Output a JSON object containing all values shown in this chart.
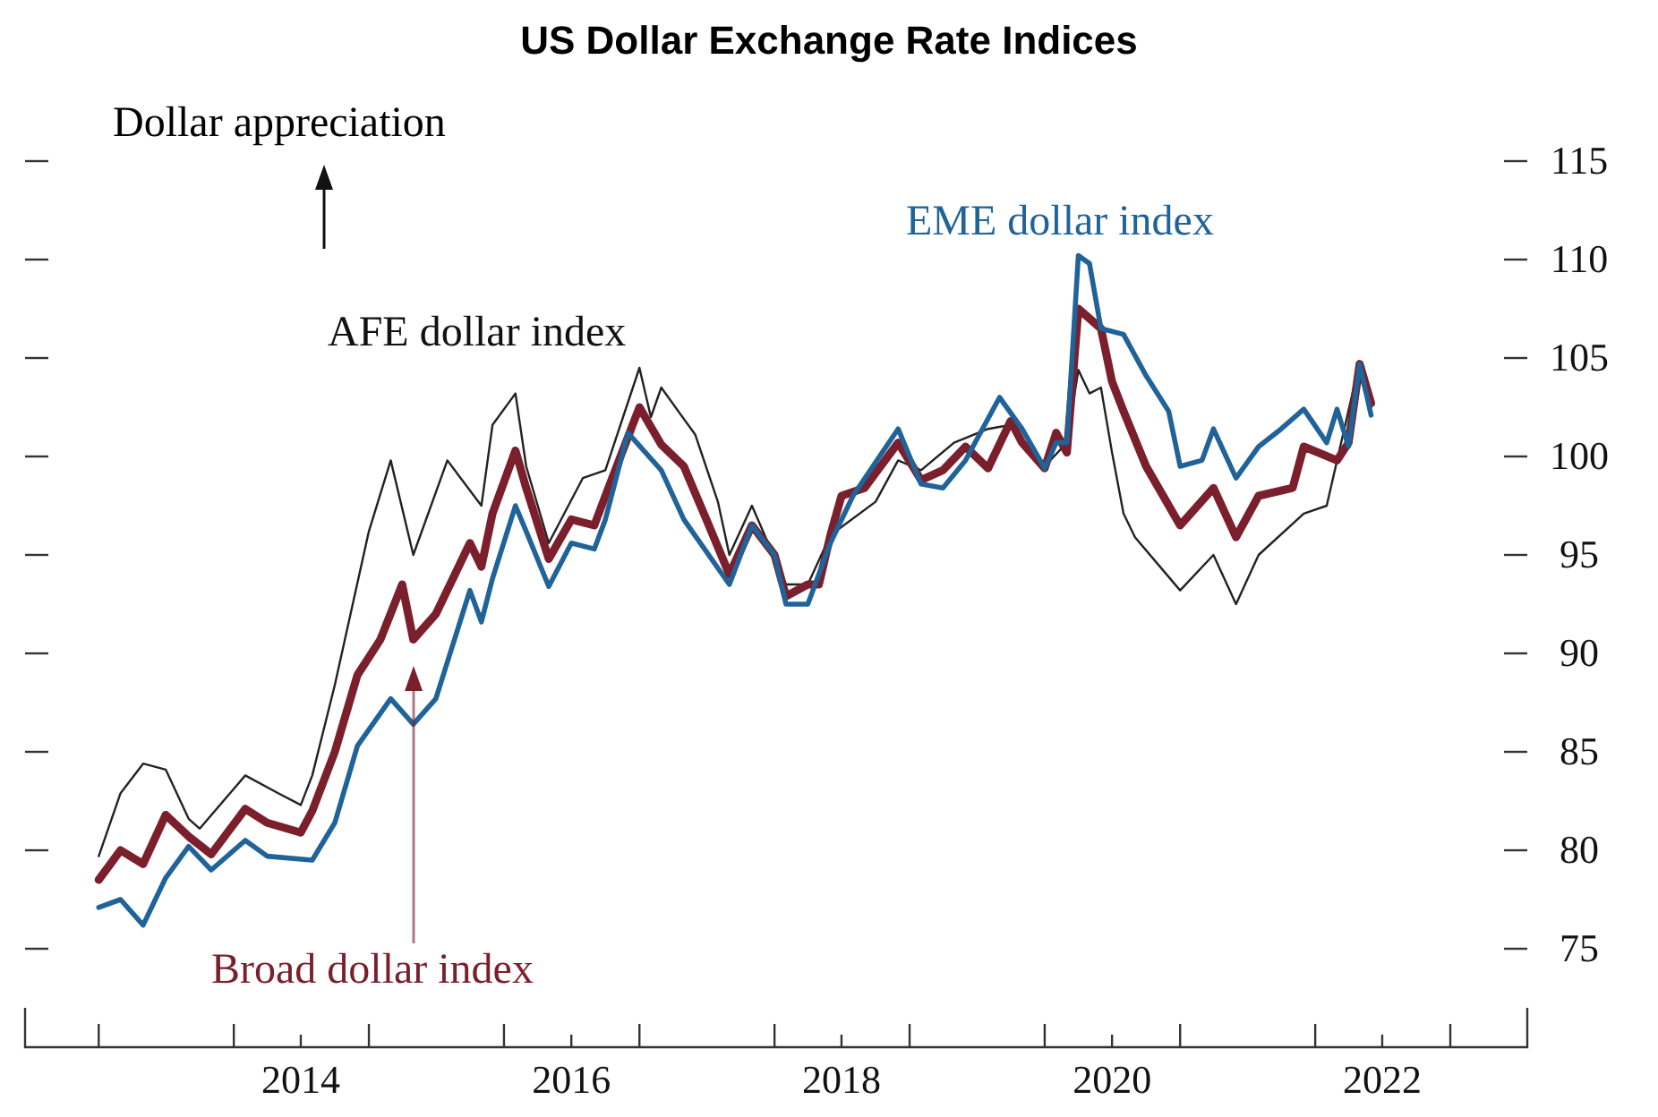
{
  "chart_data": {
    "type": "line",
    "title": "US Dollar Exchange Rate Indices",
    "xlim": [
      "2012-06-16",
      "2023-07-28"
    ],
    "xticks": [
      {
        "value": "2013-01-01",
        "label": null
      },
      {
        "value": "2014-01-01",
        "label": null
      },
      {
        "value": "2014-07-01",
        "label": "2014"
      },
      {
        "value": "2015-01-01",
        "label": null
      },
      {
        "value": "2016-01-01",
        "label": null
      },
      {
        "value": "2016-07-01",
        "label": "2016"
      },
      {
        "value": "2017-01-01",
        "label": null
      },
      {
        "value": "2018-01-01",
        "label": null
      },
      {
        "value": "2018-07-01",
        "label": "2018"
      },
      {
        "value": "2019-01-01",
        "label": null
      },
      {
        "value": "2020-01-01",
        "label": null
      },
      {
        "value": "2020-07-01",
        "label": "2020"
      },
      {
        "value": "2021-01-01",
        "label": null
      },
      {
        "value": "2022-01-01",
        "label": null
      },
      {
        "value": "2022-07-01",
        "label": "2022"
      },
      {
        "value": "2023-01-01",
        "label": null
      }
    ],
    "ylim": [
      70,
      115
    ],
    "yticks": [
      75,
      80,
      85,
      90,
      95,
      100,
      105,
      110,
      115
    ],
    "annotations": [
      "Dollar appreciation"
    ],
    "series": [
      {
        "name": "AFE dollar index",
        "color": "#222222",
        "x": [
          "2013-01",
          "2013-03",
          "2013-05",
          "2013-07",
          "2013-09",
          "2013-10",
          "2014-02",
          "2014-05",
          "2014-07",
          "2014-08",
          "2014-10",
          "2015-01",
          "2015-03",
          "2015-05",
          "2015-08",
          "2015-11",
          "2015-12",
          "2016-02",
          "2016-03",
          "2016-05",
          "2016-08",
          "2016-10",
          "2017-01",
          "2017-02",
          "2017-03",
          "2017-06",
          "2017-08",
          "2017-09",
          "2017-11",
          "2018-02",
          "2018-04",
          "2018-06",
          "2018-10",
          "2018-12",
          "2019-02",
          "2019-05",
          "2019-08",
          "2019-10",
          "2020-01",
          "2020-03",
          "2020-04",
          "2020-05",
          "2020-06",
          "2020-07",
          "2020-08",
          "2020-09",
          "2021-01",
          "2021-04",
          "2021-06",
          "2021-08",
          "2021-12",
          "2022-02",
          "2022-03",
          "2022-05",
          "2022-06"
        ],
        "values": [
          79.7,
          82.9,
          84.4,
          84.1,
          81.6,
          81.1,
          83.8,
          82.9,
          82.3,
          83.8,
          88.4,
          96.2,
          99.8,
          95,
          99.8,
          97.5,
          101.6,
          103.2,
          99.5,
          95.6,
          98.9,
          99.3,
          104.5,
          102,
          103.5,
          101.1,
          97.7,
          95,
          97.5,
          93.5,
          93.5,
          96,
          97.7,
          99.8,
          99.3,
          100.7,
          101.4,
          101.6,
          99.5,
          100.7,
          104.4,
          103.2,
          103.5,
          100.2,
          97.1,
          95.9,
          93.2,
          95,
          92.5,
          95,
          97.1,
          97.5,
          99.8,
          104.8,
          102.5
        ]
      },
      {
        "name": "Broad dollar index",
        "color": "#7a1f2b",
        "x": [
          "2013-01",
          "2013-03",
          "2013-05",
          "2013-07",
          "2013-09",
          "2013-11",
          "2014-02",
          "2014-04",
          "2014-07",
          "2014-08",
          "2014-10",
          "2014-12",
          "2015-02",
          "2015-04",
          "2015-05",
          "2015-07",
          "2015-10",
          "2015-11",
          "2015-12",
          "2016-02",
          "2016-03",
          "2016-05",
          "2016-07",
          "2016-09",
          "2016-10",
          "2017-01",
          "2017-03",
          "2017-05",
          "2017-07",
          "2017-09",
          "2017-11",
          "2018-01",
          "2018-02",
          "2018-04",
          "2018-05",
          "2018-06",
          "2018-07",
          "2018-09",
          "2018-12",
          "2019-02",
          "2019-04",
          "2019-06",
          "2019-08",
          "2019-10",
          "2019-11",
          "2020-01",
          "2020-02",
          "2020-03",
          "2020-04",
          "2020-06",
          "2020-07",
          "2020-08",
          "2020-10",
          "2021-01",
          "2021-04",
          "2021-06",
          "2021-08",
          "2021-11",
          "2021-12",
          "2022-03",
          "2022-04",
          "2022-05",
          "2022-06"
        ],
        "values": [
          78.5,
          80,
          79.3,
          81.8,
          80.7,
          79.8,
          82.1,
          81.4,
          80.9,
          82,
          85,
          88.9,
          90.7,
          93.5,
          90.7,
          92,
          95.6,
          94.4,
          97.1,
          100.3,
          98.4,
          94.8,
          96.8,
          96.5,
          98,
          102.5,
          100.6,
          99.5,
          96.8,
          94,
          96.5,
          95,
          92.9,
          93.5,
          93.5,
          96,
          98,
          98.4,
          100.7,
          98.8,
          99.3,
          100.5,
          99.4,
          101.8,
          100.7,
          99.4,
          101.2,
          100.2,
          107.5,
          106.5,
          103.8,
          102.3,
          99.5,
          96.5,
          98.4,
          95.9,
          98,
          98.4,
          100.5,
          99.8,
          100.7,
          104.7,
          102.7
        ]
      },
      {
        "name": "EME dollar index",
        "color": "#1f6399",
        "x": [
          "2013-01",
          "2013-03",
          "2013-05",
          "2013-07",
          "2013-09",
          "2013-11",
          "2014-02",
          "2014-04",
          "2014-08",
          "2014-10",
          "2014-12",
          "2015-03",
          "2015-05",
          "2015-07",
          "2015-10",
          "2015-11",
          "2015-12",
          "2016-02",
          "2016-03",
          "2016-05",
          "2016-07",
          "2016-09",
          "2016-10",
          "2016-12",
          "2017-03",
          "2017-05",
          "2017-09",
          "2017-11",
          "2018-01",
          "2018-02",
          "2018-04",
          "2018-06",
          "2018-08",
          "2018-12",
          "2019-02",
          "2019-04",
          "2019-06",
          "2019-09",
          "2019-11",
          "2020-01",
          "2020-02",
          "2020-03",
          "2020-04",
          "2020-05",
          "2020-06",
          "2020-08",
          "2020-10",
          "2020-12",
          "2021-01",
          "2021-03",
          "2021-04",
          "2021-06",
          "2021-08",
          "2021-10",
          "2021-12",
          "2022-02",
          "2022-03",
          "2022-04",
          "2022-05",
          "2022-06"
        ],
        "values": [
          77.1,
          77.5,
          76.2,
          78.6,
          80.2,
          79,
          80.5,
          79.7,
          79.5,
          81.4,
          85.3,
          87.7,
          86.4,
          87.7,
          93.2,
          91.6,
          93.8,
          97.5,
          96.2,
          93.4,
          95.6,
          95.3,
          96.8,
          101.2,
          99.3,
          96.8,
          93.5,
          96.5,
          95,
          92.5,
          92.5,
          95.6,
          98,
          101.4,
          98.6,
          98.4,
          99.8,
          103,
          101.4,
          99.4,
          100.7,
          100.7,
          110.2,
          109.8,
          106.5,
          106.2,
          104.1,
          102.3,
          99.5,
          99.8,
          101.4,
          98.9,
          100.5,
          101.4,
          102.4,
          100.7,
          102.4,
          100.5,
          104.7,
          102.1
        ]
      }
    ]
  }
}
